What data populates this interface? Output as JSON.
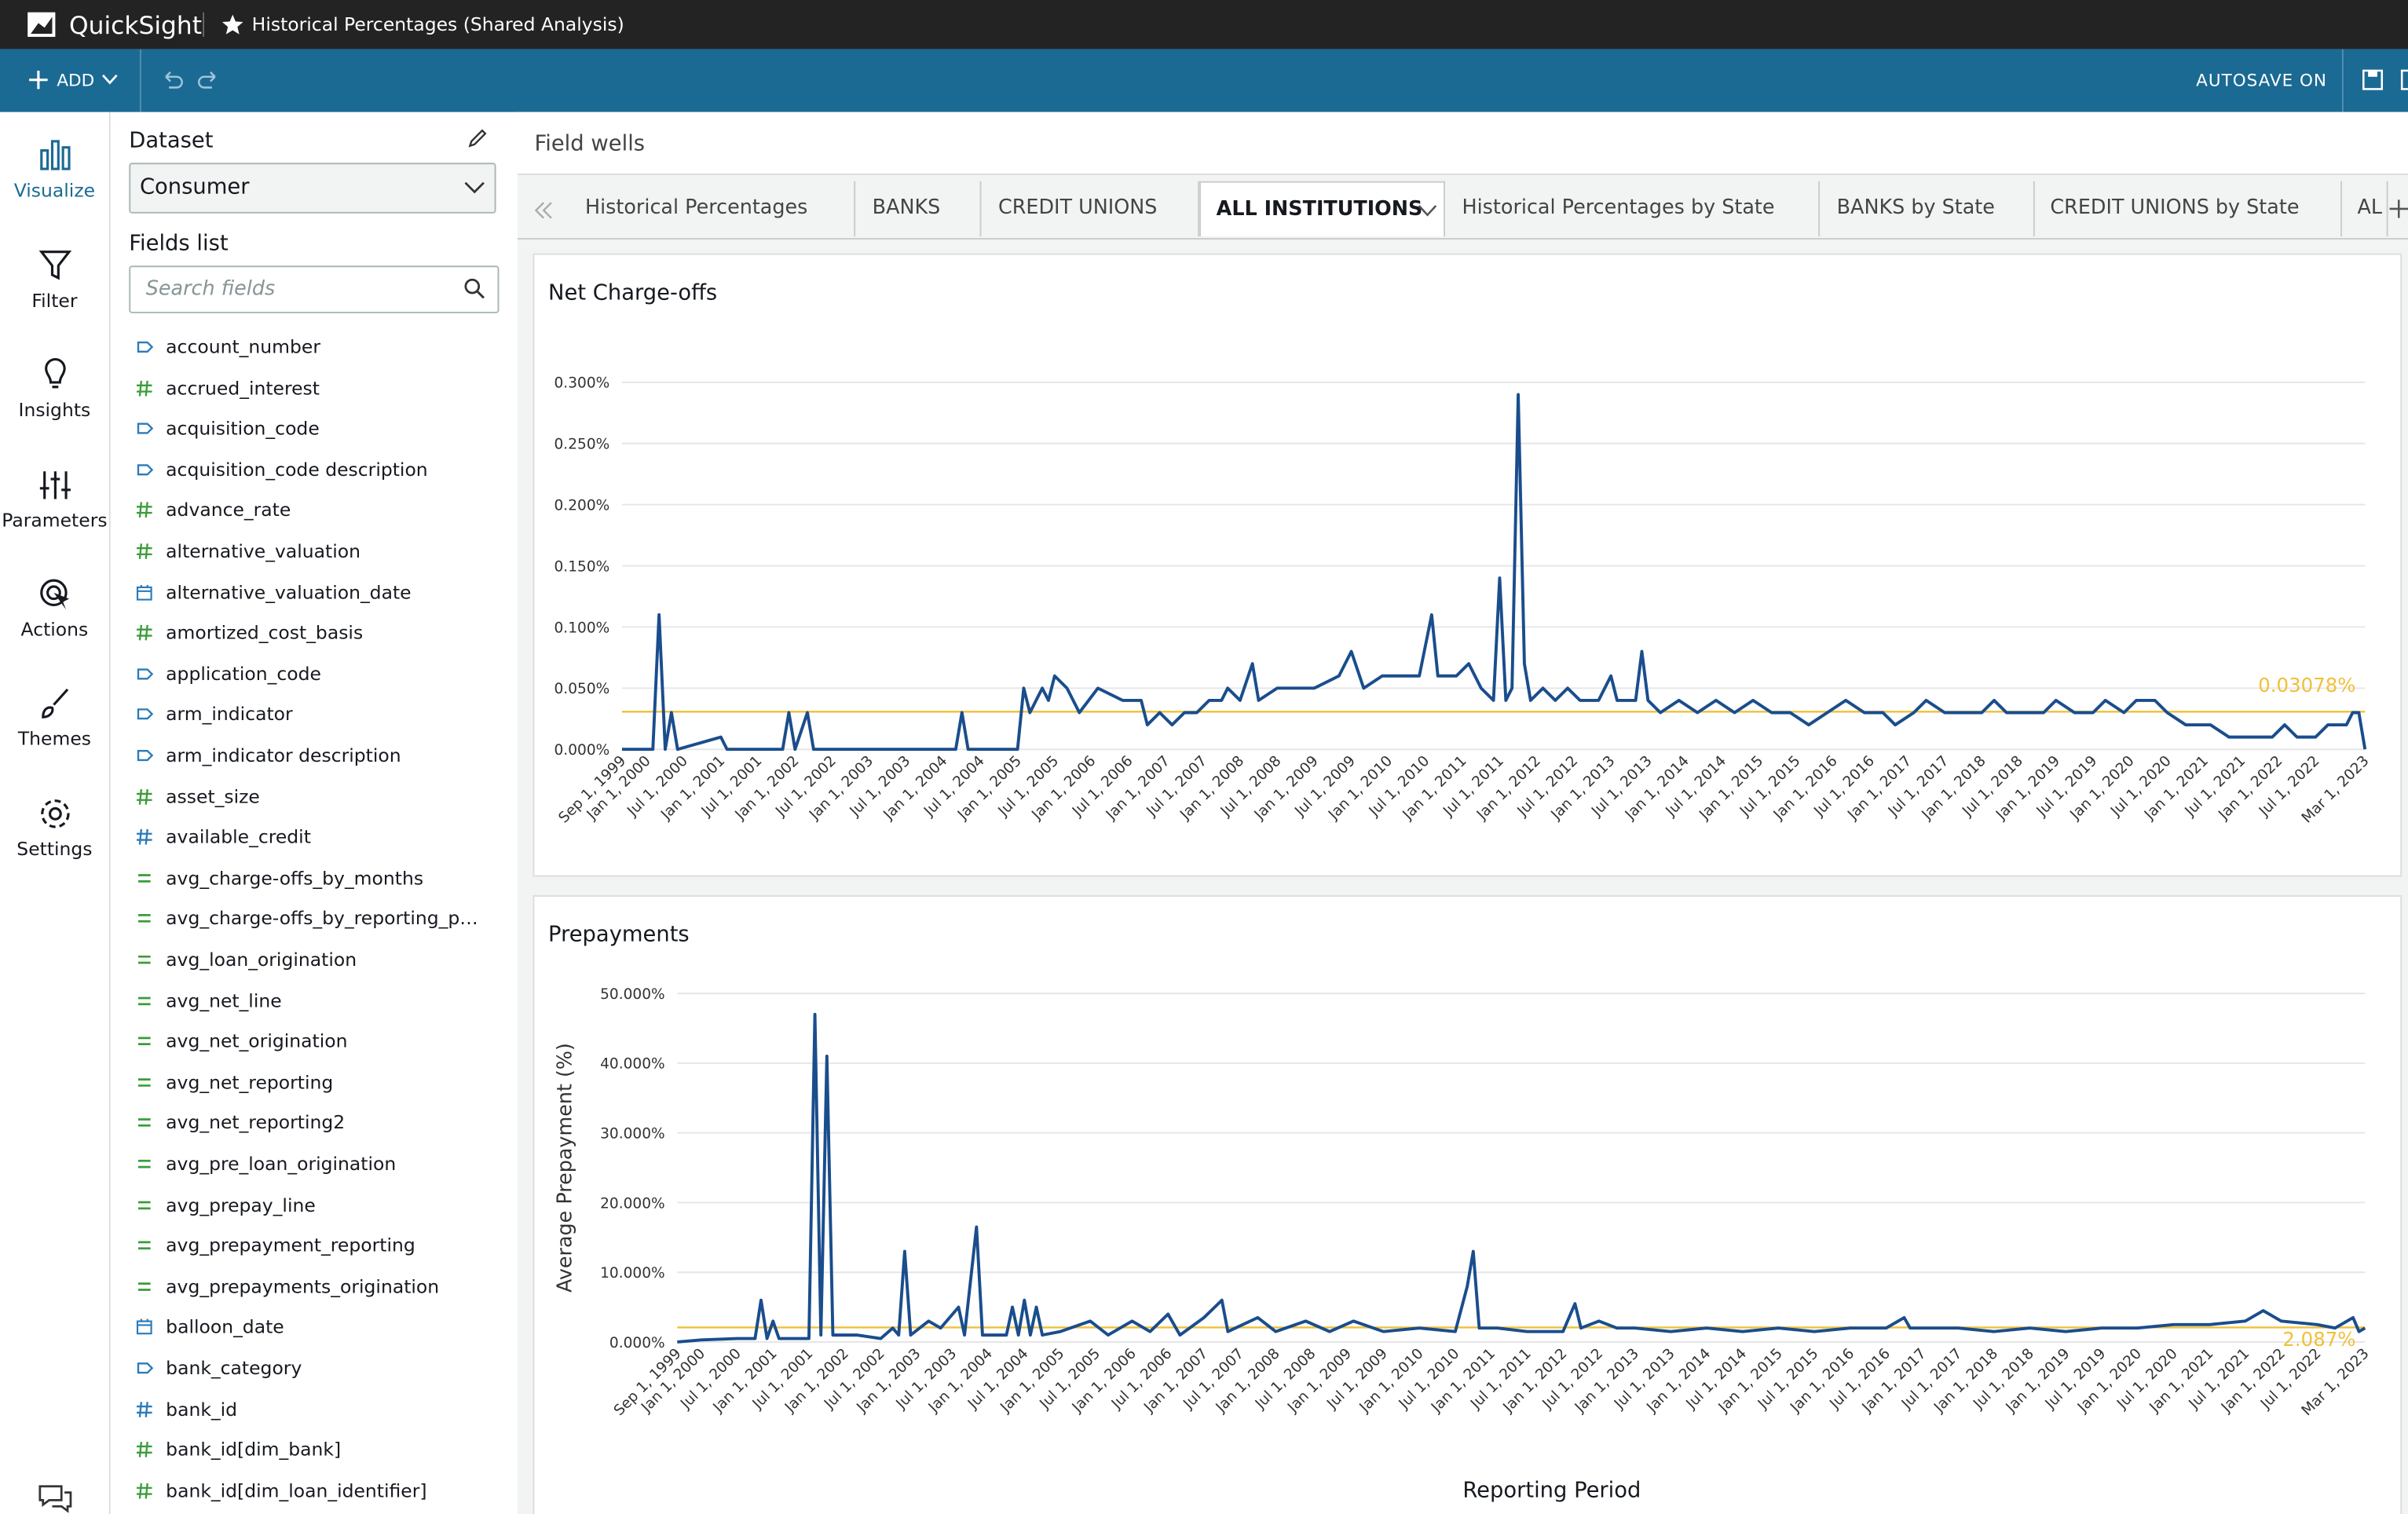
{
  "header": {
    "app_name": "QuickSight",
    "title": "Historical Percentages (Shared Analysis)"
  },
  "toolbar": {
    "add": "ADD",
    "autosave": "AUTOSAVE ON"
  },
  "nav": [
    {
      "label": "Visualize",
      "active": true
    },
    {
      "label": "Filter",
      "active": false
    },
    {
      "label": "Insights",
      "active": false
    },
    {
      "label": "Parameters",
      "active": false
    },
    {
      "label": "Actions",
      "active": false
    },
    {
      "label": "Themes",
      "active": false
    },
    {
      "label": "Settings",
      "active": false
    }
  ],
  "dataset_panel": {
    "label": "Dataset",
    "selected": "Consumer",
    "fields_label": "Fields list",
    "search_placeholder": "Search fields",
    "fields": [
      {
        "name": "account_number",
        "kind": "dimension",
        "color": "#2b7bb9"
      },
      {
        "name": "accrued_interest",
        "kind": "measure",
        "color": "#3a9d3a"
      },
      {
        "name": "acquisition_code",
        "kind": "dimension",
        "color": "#2b7bb9"
      },
      {
        "name": "acquisition_code description",
        "kind": "dimension",
        "color": "#2b7bb9"
      },
      {
        "name": "advance_rate",
        "kind": "measure",
        "color": "#3a9d3a"
      },
      {
        "name": "alternative_valuation",
        "kind": "measure",
        "color": "#3a9d3a"
      },
      {
        "name": "alternative_valuation_date",
        "kind": "date",
        "color": "#2b7bb9"
      },
      {
        "name": "amortized_cost_basis",
        "kind": "measure",
        "color": "#3a9d3a"
      },
      {
        "name": "application_code",
        "kind": "dimension",
        "color": "#2b7bb9"
      },
      {
        "name": "arm_indicator",
        "kind": "dimension",
        "color": "#2b7bb9"
      },
      {
        "name": "arm_indicator description",
        "kind": "dimension",
        "color": "#2b7bb9"
      },
      {
        "name": "asset_size",
        "kind": "measure",
        "color": "#3a9d3a"
      },
      {
        "name": "available_credit",
        "kind": "measure",
        "color": "#2b7bb9"
      },
      {
        "name": "avg_charge-offs_by_months",
        "kind": "calculated",
        "color": "#3a9d3a"
      },
      {
        "name": "avg_charge-offs_by_reporting_p…",
        "kind": "calculated",
        "color": "#3a9d3a"
      },
      {
        "name": "avg_loan_origination",
        "kind": "calculated",
        "color": "#3a9d3a"
      },
      {
        "name": "avg_net_line",
        "kind": "calculated",
        "color": "#3a9d3a"
      },
      {
        "name": "avg_net_origination",
        "kind": "calculated",
        "color": "#3a9d3a"
      },
      {
        "name": "avg_net_reporting",
        "kind": "calculated",
        "color": "#3a9d3a"
      },
      {
        "name": "avg_net_reporting2",
        "kind": "calculated",
        "color": "#3a9d3a"
      },
      {
        "name": "avg_pre_loan_origination",
        "kind": "calculated",
        "color": "#3a9d3a"
      },
      {
        "name": "avg_prepay_line",
        "kind": "calculated",
        "color": "#3a9d3a"
      },
      {
        "name": "avg_prepayment_reporting",
        "kind": "calculated",
        "color": "#3a9d3a"
      },
      {
        "name": "avg_prepayments_origination",
        "kind": "calculated",
        "color": "#3a9d3a"
      },
      {
        "name": "balloon_date",
        "kind": "date",
        "color": "#2b7bb9"
      },
      {
        "name": "bank_category",
        "kind": "dimension",
        "color": "#2b7bb9"
      },
      {
        "name": "bank_id",
        "kind": "measure",
        "color": "#2b7bb9"
      },
      {
        "name": "bank_id[dim_bank]",
        "kind": "measure",
        "color": "#3a9d3a"
      },
      {
        "name": "bank_id[dim_loan_identifier]",
        "kind": "measure",
        "color": "#3a9d3a"
      }
    ]
  },
  "field_wells": "Field wells",
  "tabs": [
    {
      "label": "Historical Percentages",
      "active": false
    },
    {
      "label": "BANKS",
      "active": false
    },
    {
      "label": "CREDIT UNIONS",
      "active": false
    },
    {
      "label": "ALL INSTITUTIONS",
      "active": true
    },
    {
      "label": "Historical Percentages by State",
      "active": false
    },
    {
      "label": "BANKS by State",
      "active": false
    },
    {
      "label": "CREDIT UNIONS by State",
      "active": false
    },
    {
      "label": "AL",
      "active": false
    }
  ],
  "chart_data": [
    {
      "type": "line",
      "title": "Net Charge-offs",
      "color": "#1a4d8c",
      "grid": true,
      "xlim": [
        "Sep 1, 1999",
        "Mar 1, 2023"
      ],
      "ylim": [
        0,
        0.3
      ],
      "yticks": [
        {
          "value": 0,
          "label": "0.000%"
        },
        {
          "value": 0.05,
          "label": "0.050%"
        },
        {
          "value": 0.1,
          "label": "0.100%"
        },
        {
          "value": 0.15,
          "label": "0.150%"
        },
        {
          "value": 0.2,
          "label": "0.200%"
        },
        {
          "value": 0.25,
          "label": "0.250%"
        },
        {
          "value": 0.3,
          "label": "0.300%"
        }
      ],
      "xticks": [
        "Sep 1, 1999",
        "Jan 1, 2000",
        "Jul 1, 2000",
        "Jan 1, 2001",
        "Jul 1, 2001",
        "Jan 1, 2002",
        "Jul 1, 2002",
        "Jan 1, 2003",
        "Jul 1, 2003",
        "Jan 1, 2004",
        "Jul 1, 2004",
        "Jan 1, 2005",
        "Jul 1, 2005",
        "Jan 1, 2006",
        "Jul 1, 2006",
        "Jan 1, 2007",
        "Jul 1, 2007",
        "Jan 1, 2008",
        "Jul 1, 2008",
        "Jan 1, 2009",
        "Jul 1, 2009",
        "Jan 1, 2010",
        "Jul 1, 2010",
        "Jan 1, 2011",
        "Jul 1, 2011",
        "Jan 1, 2012",
        "Jul 1, 2012",
        "Jan 1, 2013",
        "Jul 1, 2013",
        "Jan 1, 2014",
        "Jul 1, 2014",
        "Jan 1, 2015",
        "Jul 1, 2015",
        "Jan 1, 2016",
        "Jul 1, 2016",
        "Jan 1, 2017",
        "Jul 1, 2017",
        "Jan 1, 2018",
        "Jul 1, 2018",
        "Jan 1, 2019",
        "Jul 1, 2019",
        "Jan 1, 2020",
        "Jul 1, 2020",
        "Jan 1, 2021",
        "Jul 1, 2021",
        "Jan 1, 2022",
        "Jul 1, 2022",
        "Mar 1, 2023"
      ],
      "x": [
        "Sep 1, 1999",
        "Feb 1, 2000",
        "Mar 1, 2000",
        "Apr 1, 2000",
        "May 1, 2000",
        "Jun 1, 2000",
        "Jan 1, 2001",
        "Feb 1, 2001",
        "Nov 1, 2001",
        "Dec 1, 2001",
        "Jan 1, 2002",
        "Mar 1, 2002",
        "Apr 1, 2002",
        "Mar 1, 2004",
        "Apr 1, 2004",
        "May 1, 2004",
        "Jan 1, 2005",
        "Feb 1, 2005",
        "Mar 1, 2005",
        "May 1, 2005",
        "Jun 1, 2005",
        "Jul 1, 2005",
        "Sep 1, 2005",
        "Nov 1, 2005",
        "Feb 1, 2006",
        "Jun 1, 2006",
        "Sep 1, 2006",
        "Oct 1, 2006",
        "Dec 1, 2006",
        "Feb 1, 2007",
        "Apr 1, 2007",
        "Jun 1, 2007",
        "Aug 1, 2007",
        "Oct 1, 2007",
        "Nov 1, 2007",
        "Jan 1, 2008",
        "Mar 1, 2008",
        "Apr 1, 2008",
        "Jul 1, 2008",
        "Oct 1, 2008",
        "Jan 1, 2009",
        "May 1, 2009",
        "Jul 1, 2009",
        "Sep 1, 2009",
        "Dec 1, 2009",
        "Jun 1, 2010",
        "Aug 1, 2010",
        "Sep 1, 2010",
        "Dec 1, 2010",
        "Feb 1, 2011",
        "Apr 1, 2011",
        "Jun 1, 2011",
        "Jul 1, 2011",
        "Aug 1, 2011",
        "Sep 1, 2011",
        "Oct 1, 2011",
        "Nov 1, 2011",
        "Dec 1, 2011",
        "Feb 1, 2012",
        "Apr 1, 2012",
        "Jun 1, 2012",
        "Aug 1, 2012",
        "Nov 1, 2012",
        "Jan 1, 2013",
        "Feb 1, 2013",
        "May 1, 2013",
        "Jun 1, 2013",
        "Jul 1, 2013",
        "Sep 1, 2013",
        "Dec 1, 2013",
        "Mar 1, 2014",
        "Jun 1, 2014",
        "Sep 1, 2014",
        "Dec 1, 2014",
        "Mar 1, 2015",
        "Jun 1, 2015",
        "Sep 1, 2015",
        "Dec 1, 2015",
        "Mar 1, 2016",
        "Jun 1, 2016",
        "Sep 1, 2016",
        "Nov 1, 2016",
        "Feb 1, 2017",
        "Apr 1, 2017",
        "Jul 1, 2017",
        "Jan 1, 2018",
        "Mar 1, 2018",
        "May 1, 2018",
        "Aug 1, 2018",
        "Nov 1, 2018",
        "Jan 1, 2019",
        "Apr 1, 2019",
        "Jul 1, 2019",
        "Sep 1, 2019",
        "Dec 1, 2019",
        "Feb 1, 2020",
        "May 1, 2020",
        "Jul 1, 2020",
        "Oct 1, 2020",
        "Feb 1, 2021",
        "May 1, 2021",
        "Sep 1, 2021",
        "Dec 1, 2021",
        "Feb 1, 2022",
        "Apr 1, 2022",
        "Jul 1, 2022",
        "Sep 1, 2022",
        "Dec 1, 2022",
        "Jan 1, 2023",
        "Feb 1, 2023",
        "Mar 1, 2023"
      ],
      "values": [
        0,
        0,
        0.11,
        0,
        0.03,
        0,
        0.01,
        0,
        0,
        0.03,
        0,
        0.03,
        0,
        0,
        0.03,
        0,
        0,
        0.05,
        0.03,
        0.05,
        0.04,
        0.06,
        0.05,
        0.03,
        0.05,
        0.04,
        0.04,
        0.02,
        0.03,
        0.02,
        0.03,
        0.03,
        0.04,
        0.04,
        0.05,
        0.04,
        0.07,
        0.04,
        0.05,
        0.05,
        0.05,
        0.06,
        0.08,
        0.05,
        0.06,
        0.06,
        0.11,
        0.06,
        0.06,
        0.07,
        0.05,
        0.04,
        0.14,
        0.04,
        0.05,
        0.29,
        0.07,
        0.04,
        0.05,
        0.04,
        0.05,
        0.04,
        0.04,
        0.06,
        0.04,
        0.04,
        0.08,
        0.04,
        0.03,
        0.04,
        0.03,
        0.04,
        0.03,
        0.04,
        0.03,
        0.03,
        0.02,
        0.03,
        0.04,
        0.03,
        0.03,
        0.02,
        0.03,
        0.04,
        0.03,
        0.03,
        0.04,
        0.03,
        0.03,
        0.03,
        0.04,
        0.03,
        0.03,
        0.04,
        0.03,
        0.04,
        0.04,
        0.03,
        0.02,
        0.02,
        0.01,
        0.01,
        0.01,
        0.02,
        0.01,
        0.01,
        0.02,
        0.02,
        0.03,
        0.03,
        0
      ],
      "reference_line": {
        "value": 0.03078,
        "label": "0.03078%",
        "color": "#f0c03a"
      }
    },
    {
      "type": "line",
      "title": "Prepayments",
      "ylabel": "Average Prepayment (%)",
      "xlabel": "Reporting Period",
      "color": "#1a4d8c",
      "grid": true,
      "xlim": [
        "Sep 1, 1999",
        "Mar 1, 2023"
      ],
      "ylim": [
        0,
        50
      ],
      "yticks": [
        {
          "value": 0,
          "label": "0.000%"
        },
        {
          "value": 10,
          "label": "10.000%"
        },
        {
          "value": 20,
          "label": "20.000%"
        },
        {
          "value": 30,
          "label": "30.000%"
        },
        {
          "value": 40,
          "label": "40.000%"
        },
        {
          "value": 50,
          "label": "50.000%"
        }
      ],
      "xticks": [
        "Sep 1, 1999",
        "Jan 1, 2000",
        "Jul 1, 2000",
        "Jan 1, 2001",
        "Jul 1, 2001",
        "Jan 1, 2002",
        "Jul 1, 2002",
        "Jan 1, 2003",
        "Jul 1, 2003",
        "Jan 1, 2004",
        "Jul 1, 2004",
        "Jan 1, 2005",
        "Jul 1, 2005",
        "Jan 1, 2006",
        "Jul 1, 2006",
        "Jan 1, 2007",
        "Jul 1, 2007",
        "Jan 1, 2008",
        "Jul 1, 2008",
        "Jan 1, 2009",
        "Jul 1, 2009",
        "Jan 1, 2010",
        "Jul 1, 2010",
        "Jan 1, 2011",
        "Jul 1, 2011",
        "Jan 1, 2012",
        "Jul 1, 2012",
        "Jan 1, 2013",
        "Jul 1, 2013",
        "Jan 1, 2014",
        "Jul 1, 2014",
        "Jan 1, 2015",
        "Jul 1, 2015",
        "Jan 1, 2016",
        "Jul 1, 2016",
        "Jan 1, 2017",
        "Jul 1, 2017",
        "Jan 1, 2018",
        "Jul 1, 2018",
        "Jan 1, 2019",
        "Jul 1, 2019",
        "Jan 1, 2020",
        "Jul 1, 2020",
        "Jan 1, 2021",
        "Jul 1, 2021",
        "Jan 1, 2022",
        "Jul 1, 2022",
        "Mar 1, 2023"
      ],
      "x": [
        "Sep 1, 1999",
        "Jan 1, 2000",
        "Jul 1, 2000",
        "Oct 1, 2000",
        "Nov 1, 2000",
        "Dec 1, 2000",
        "Jan 1, 2001",
        "Feb 1, 2001",
        "Jul 1, 2001",
        "Aug 1, 2001",
        "Sep 1, 2001",
        "Oct 1, 2001",
        "Nov 1, 2001",
        "Mar 1, 2002",
        "Jul 1, 2002",
        "Sep 1, 2002",
        "Oct 1, 2002",
        "Nov 1, 2002",
        "Dec 1, 2002",
        "Mar 1, 2003",
        "May 1, 2003",
        "Aug 1, 2003",
        "Sep 1, 2003",
        "Nov 1, 2003",
        "Dec 1, 2003",
        "Apr 1, 2004",
        "May 1, 2004",
        "Jun 1, 2004",
        "Jul 1, 2004",
        "Aug 1, 2004",
        "Sep 1, 2004",
        "Oct 1, 2004",
        "Jan 1, 2005",
        "Jun 1, 2005",
        "Sep 1, 2005",
        "Jan 1, 2006",
        "Apr 1, 2006",
        "Jul 1, 2006",
        "Sep 1, 2006",
        "Jan 1, 2007",
        "Apr 1, 2007",
        "May 1, 2007",
        "Oct 1, 2007",
        "Jan 1, 2008",
        "Jun 1, 2008",
        "Oct 1, 2008",
        "Feb 1, 2009",
        "Jul 1, 2009",
        "Jan 1, 2010",
        "Jul 1, 2010",
        "Sep 1, 2010",
        "Oct 1, 2010",
        "Nov 1, 2010",
        "Feb 1, 2011",
        "Jul 1, 2011",
        "Jan 1, 2012",
        "Mar 1, 2012",
        "Apr 1, 2012",
        "Jul 1, 2012",
        "Oct 1, 2012",
        "Jan 1, 2013",
        "Jul 1, 2013",
        "Jan 1, 2014",
        "Jul 1, 2014",
        "Jan 1, 2015",
        "Jul 1, 2015",
        "Jan 1, 2016",
        "Jul 1, 2016",
        "Oct 1, 2016",
        "Nov 1, 2016",
        "Jul 1, 2017",
        "Jan 1, 2018",
        "Jul 1, 2018",
        "Jan 1, 2019",
        "Jul 1, 2019",
        "Jan 1, 2020",
        "Jul 1, 2020",
        "Jan 1, 2021",
        "Jul 1, 2021",
        "Oct 1, 2021",
        "Jan 1, 2022",
        "Jul 1, 2022",
        "Oct 1, 2022",
        "Jan 1, 2023",
        "Feb 1, 2023",
        "Mar 1, 2023"
      ],
      "values": [
        0,
        0.3,
        0.5,
        0.5,
        6,
        0.5,
        3,
        0.5,
        0.5,
        47,
        1,
        41,
        1,
        1,
        0.5,
        2,
        1,
        13,
        1,
        3,
        2,
        5,
        1,
        16.5,
        1,
        1,
        5,
        1,
        6,
        1,
        5,
        1,
        1.5,
        3,
        1,
        3,
        1.5,
        4,
        1,
        3.5,
        6,
        1.5,
        3.5,
        1.5,
        3,
        1.5,
        3,
        1.5,
        2,
        1.5,
        8,
        13,
        2,
        2,
        1.5,
        1.5,
        5.5,
        2,
        3,
        2,
        2,
        1.5,
        2,
        1.5,
        2,
        1.5,
        2,
        2,
        3.5,
        2,
        2,
        1.5,
        2,
        1.5,
        2,
        2,
        2.5,
        2.5,
        3,
        4.5,
        3,
        2.5,
        2,
        3.5,
        1.5,
        2
      ],
      "reference_line": {
        "value": 2.087,
        "label": "2.087%",
        "color": "#f0c03a"
      }
    }
  ]
}
